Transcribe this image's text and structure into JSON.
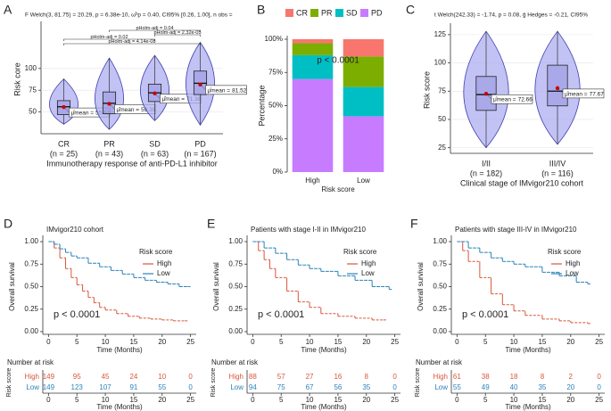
{
  "chart_data": [
    {
      "panel": "A",
      "type": "violin",
      "annotation": "F Welch(3, 81.75) = 20.29, p = 6.38e-10, ω̂²p = 0.40, CI95% [0.26, 1.00], n obs =",
      "categories": [
        "CR",
        "PR",
        "SD",
        "PD"
      ],
      "n_labels": [
        "(n = 25)",
        "(n = 43)",
        "(n = 63)",
        "(n = 167)"
      ],
      "min": [
        36,
        30,
        40,
        35
      ],
      "q1": [
        47,
        48,
        62,
        70
      ],
      "median": [
        56,
        60,
        72,
        83
      ],
      "q3": [
        63,
        73,
        82,
        97
      ],
      "max": [
        88,
        112,
        115,
        130
      ],
      "means": [
        55.62,
        59.39,
        71.38,
        81.52
      ],
      "mean_label_prefix": "μ̂mean =",
      "comparisons": [
        "pHolm-adj = 0.04",
        "pHolm-adj = 2.32e-05",
        "pHolm-adj = 0.02",
        "pHolm-adj = 4.14e-08"
      ],
      "ylabel": "Risk core",
      "xlabel": "Immunotherapy response of anti-PD-L1 inhibitor",
      "ylim": [
        25,
        150
      ],
      "yticks": [
        50,
        75,
        100
      ],
      "grid": true,
      "color": "#aeaef0",
      "stroke": "#3f3fb0",
      "mean_color": "#cc0000"
    },
    {
      "panel": "B",
      "type": "stacked_bar",
      "title": "p < 0.0001",
      "categories": [
        "High",
        "Low"
      ],
      "series": [
        {
          "name": "CR",
          "color": "#F8766D",
          "values": [
            3,
            13
          ]
        },
        {
          "name": "PR",
          "color": "#7CAE00",
          "values": [
            9,
            23
          ]
        },
        {
          "name": "SD",
          "color": "#00BFC4",
          "values": [
            18,
            22
          ]
        },
        {
          "name": "PD",
          "color": "#C77CFF",
          "values": [
            70,
            42
          ]
        }
      ],
      "ylim": [
        0,
        100
      ],
      "yticks": [
        {
          "value": 0,
          "label": "0%"
        },
        {
          "value": 25,
          "label": "25%"
        },
        {
          "value": 50,
          "label": "50%"
        },
        {
          "value": 75,
          "label": "75%"
        },
        {
          "value": 100,
          "label": "100%"
        }
      ],
      "xlabel": "Risk score",
      "ylabel": "Percentage"
    },
    {
      "panel": "C",
      "type": "violin",
      "annotation": "t Welch(242.33) = -1.74, p = 0.08, ĝ Hedges = -0.21, CI95%",
      "categories": [
        "I/II",
        "III/IV"
      ],
      "n_labels": [
        "(n = 182)",
        "(n = 116)"
      ],
      "min": [
        25,
        28
      ],
      "q1": [
        58,
        62
      ],
      "median": [
        72,
        75
      ],
      "q3": [
        88,
        98
      ],
      "max": [
        128,
        128
      ],
      "means": [
        72.66,
        77.67
      ],
      "mean_label_prefix": "μ̂mean =",
      "comparisons": [],
      "ylabel": "Risk score",
      "xlabel": "Clinical stage of IMvigor210 cohort",
      "ylim": [
        20,
        132
      ],
      "yticks": [
        25,
        50,
        75,
        100,
        125
      ],
      "grid": true,
      "color": "#aeaef0",
      "stroke": "#3f3fb0",
      "mean_color": "#cc0000"
    },
    {
      "panel": "D",
      "type": "km",
      "title": "IMvigor210 cohort",
      "legend_title": "Risk score",
      "pvalue": "p < 0.0001",
      "ylabel": "Overall survival",
      "xlabel": "Time (Months)",
      "xlim": [
        -1,
        26
      ],
      "xticks": [
        0,
        5,
        10,
        15,
        20,
        25
      ],
      "ylim": [
        -0.03,
        1.03
      ],
      "yticks": [
        {
          "value": 0,
          "label": "0.00"
        },
        {
          "value": 0.25,
          "label": "0.25"
        },
        {
          "value": 0.5,
          "label": "0.50"
        },
        {
          "value": 0.75,
          "label": "0.75"
        },
        {
          "value": 1,
          "label": "1.00"
        }
      ],
      "series": [
        {
          "name": "High",
          "color": "#D9573A",
          "x": [
            0,
            1,
            2,
            3,
            4,
            5,
            6,
            7,
            8,
            9,
            10,
            12,
            14,
            16,
            18,
            20,
            22,
            24
          ],
          "values": [
            1,
            0.93,
            0.82,
            0.7,
            0.6,
            0.52,
            0.45,
            0.38,
            0.32,
            0.27,
            0.24,
            0.2,
            0.17,
            0.15,
            0.14,
            0.13,
            0.12,
            0.12
          ]
        },
        {
          "name": "Low",
          "color": "#2B83BA",
          "x": [
            0,
            1,
            2,
            3,
            4,
            5,
            7,
            9,
            11,
            13,
            15,
            17,
            19,
            21,
            23,
            24.5
          ],
          "values": [
            1,
            0.97,
            0.92,
            0.88,
            0.84,
            0.82,
            0.76,
            0.72,
            0.68,
            0.64,
            0.6,
            0.57,
            0.55,
            0.53,
            0.5,
            0.5
          ]
        }
      ],
      "risk_table": {
        "title": "Number at risk",
        "ylabel": "Risk score",
        "xlabel": "Time (Months)",
        "rows": [
          [
            149,
            95,
            45,
            24,
            10,
            0
          ],
          [
            149,
            123,
            107,
            91,
            55,
            0
          ]
        ]
      }
    },
    {
      "panel": "E",
      "type": "km",
      "title": "Patients with stage I-II in IMvigor210",
      "legend_title": "Risk score",
      "pvalue": "p < 0.0001",
      "ylabel": "Overall survival",
      "xlabel": "Time (Months)",
      "xlim": [
        -1,
        26
      ],
      "xticks": [
        0,
        5,
        10,
        15,
        20,
        25
      ],
      "ylim": [
        -0.03,
        1.03
      ],
      "yticks": [
        {
          "value": 0,
          "label": "0.00"
        },
        {
          "value": 0.25,
          "label": "0.25"
        },
        {
          "value": 0.5,
          "label": "0.50"
        },
        {
          "value": 0.75,
          "label": "0.75"
        },
        {
          "value": 1,
          "label": "1.00"
        }
      ],
      "series": [
        {
          "name": "High",
          "color": "#D9573A",
          "x": [
            0,
            1,
            2,
            3,
            4,
            6,
            8,
            10,
            12,
            15,
            18,
            21,
            23
          ],
          "values": [
            1,
            0.9,
            0.8,
            0.7,
            0.6,
            0.45,
            0.33,
            0.27,
            0.2,
            0.17,
            0.15,
            0.13,
            0.13
          ]
        },
        {
          "name": "Low",
          "color": "#2B83BA",
          "x": [
            0,
            2,
            4,
            6,
            8,
            10,
            12,
            15,
            18,
            21,
            24
          ],
          "values": [
            1,
            0.93,
            0.87,
            0.8,
            0.74,
            0.7,
            0.67,
            0.62,
            0.57,
            0.5,
            0.47
          ]
        }
      ],
      "risk_table": {
        "title": "Number at risk",
        "ylabel": "Risk score",
        "xlabel": "Time (Months)",
        "rows": [
          [
            88,
            57,
            27,
            16,
            8,
            0
          ],
          [
            94,
            75,
            67,
            56,
            35,
            0
          ]
        ]
      }
    },
    {
      "panel": "F",
      "type": "km",
      "title": "Patients with stage III-IV in IMvigor210",
      "legend_title": "Risk score",
      "pvalue": "p < 0.0001",
      "ylabel": "Overall survival",
      "xlabel": "Time (Months)",
      "xlim": [
        -1,
        26
      ],
      "xticks": [
        0,
        5,
        10,
        15,
        20,
        25
      ],
      "ylim": [
        -0.03,
        1.03
      ],
      "yticks": [
        {
          "value": 0,
          "label": "0.00"
        },
        {
          "value": 0.25,
          "label": "0.25"
        },
        {
          "value": 0.5,
          "label": "0.50"
        },
        {
          "value": 0.75,
          "label": "0.75"
        },
        {
          "value": 1,
          "label": "1.00"
        }
      ],
      "series": [
        {
          "name": "High",
          "color": "#D9573A",
          "x": [
            0,
            1,
            2,
            4,
            6,
            8,
            10,
            12,
            15,
            18,
            20,
            23
          ],
          "values": [
            1,
            0.9,
            0.78,
            0.6,
            0.42,
            0.3,
            0.23,
            0.18,
            0.14,
            0.12,
            0.1,
            0.09
          ]
        },
        {
          "name": "Low",
          "color": "#2B83BA",
          "x": [
            0,
            2,
            4,
            6,
            8,
            10,
            12,
            15,
            18,
            21,
            23
          ],
          "values": [
            1,
            0.93,
            0.88,
            0.82,
            0.78,
            0.75,
            0.72,
            0.66,
            0.62,
            0.55,
            0.53
          ]
        }
      ],
      "risk_table": {
        "title": "Number at risk",
        "ylabel": "Risk score",
        "xlabel": "Time (Months)",
        "rows": [
          [
            61,
            38,
            18,
            8,
            2,
            0
          ],
          [
            55,
            49,
            40,
            35,
            20,
            0
          ]
        ]
      }
    }
  ]
}
